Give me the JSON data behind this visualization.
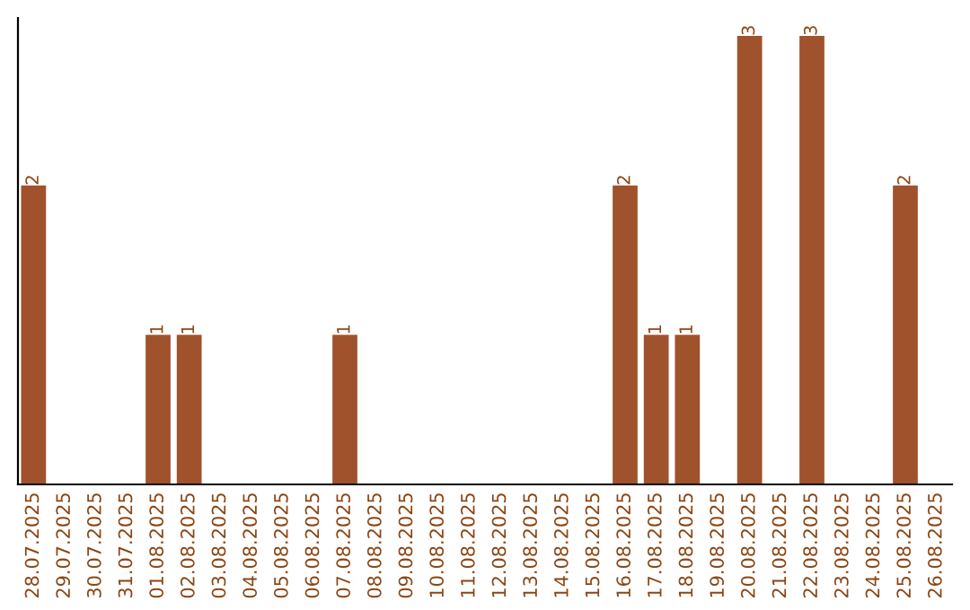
{
  "chart_data": {
    "type": "bar",
    "categories": [
      "28.07.2025",
      "29.07.2025",
      "30.07.2025",
      "31.07.2025",
      "01.08.2025",
      "02.08.2025",
      "03.08.2025",
      "04.08.2025",
      "05.08.2025",
      "06.08.2025",
      "07.08.2025",
      "08.08.2025",
      "09.08.2025",
      "10.08.2025",
      "11.08.2025",
      "12.08.2025",
      "13.08.2025",
      "14.08.2025",
      "15.08.2025",
      "16.08.2025",
      "17.08.2025",
      "18.08.2025",
      "19.08.2025",
      "20.08.2025",
      "21.08.2025",
      "22.08.2025",
      "23.08.2025",
      "24.08.2025",
      "25.08.2025",
      "26.08.2025"
    ],
    "values": [
      2,
      0,
      0,
      0,
      1,
      1,
      0,
      0,
      0,
      0,
      1,
      0,
      0,
      0,
      0,
      0,
      0,
      0,
      0,
      2,
      1,
      1,
      0,
      3,
      0,
      3,
      0,
      0,
      2,
      0
    ],
    "color": "#a0522d",
    "value_labels": [
      "2",
      null,
      null,
      null,
      "1",
      "1",
      null,
      null,
      null,
      null,
      "1",
      null,
      null,
      null,
      null,
      null,
      null,
      null,
      null,
      "2",
      "1",
      "1",
      null,
      "3",
      null,
      "3",
      null,
      null,
      "2",
      null
    ],
    "tick_labels": "x",
    "grid": false
  }
}
